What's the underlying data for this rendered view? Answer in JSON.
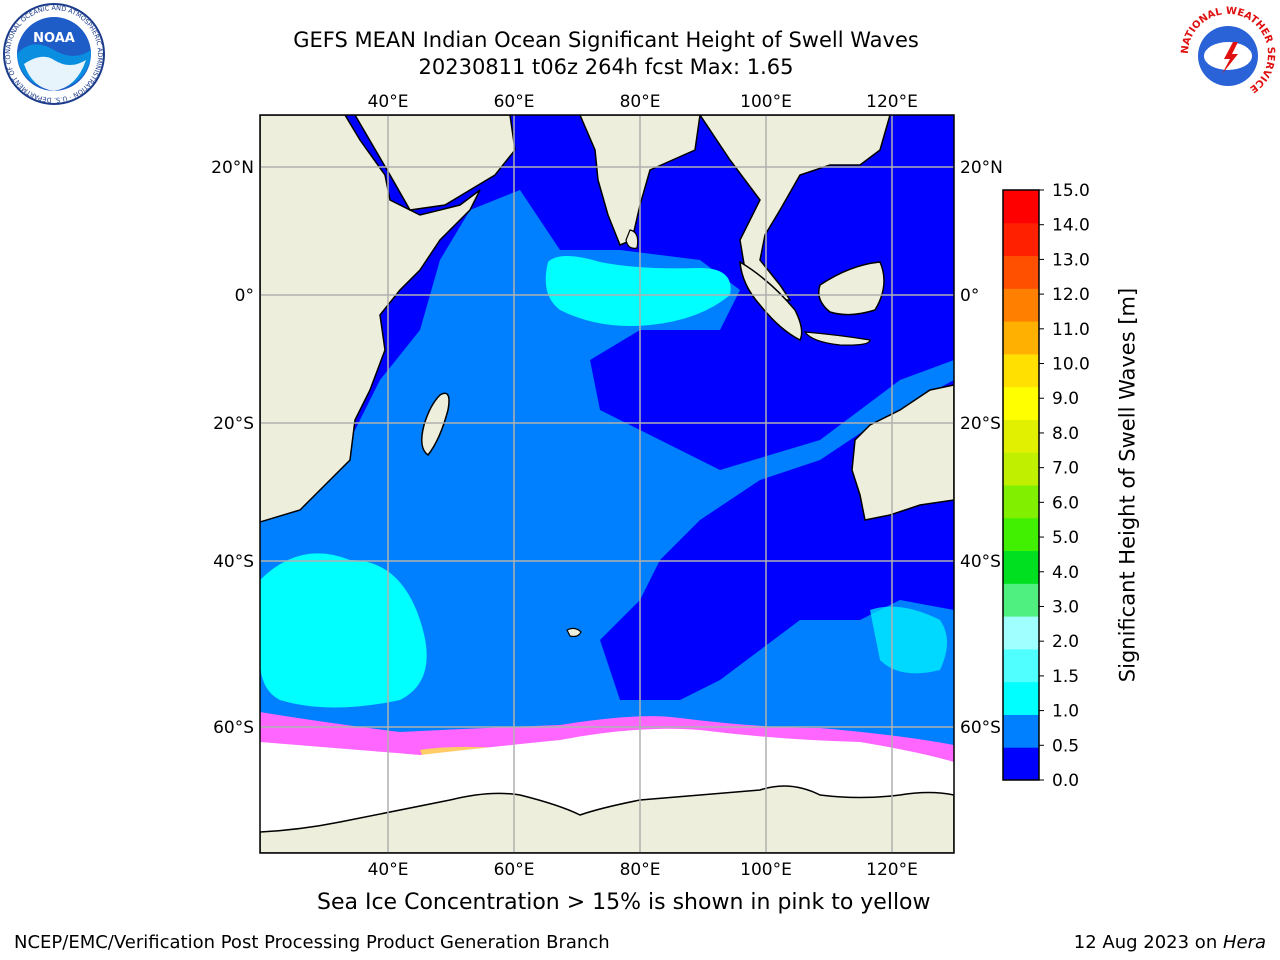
{
  "header": {
    "title_line1": "GEFS MEAN Indian Ocean Significant Height of Swell Waves",
    "title_line2": "20230811 t06z 264h fcst   Max: 1.65"
  },
  "logos": {
    "left": "noaa-logo",
    "left_text": "NOAA",
    "left_ring_text": "NATIONAL OCEANIC AND ATMOSPHERIC ADMINISTRATION · U.S. DEPARTMENT OF COMMERCE",
    "right": "nws-logo",
    "right_ring_text": "NATIONAL WEATHER SERVICE"
  },
  "map": {
    "lon_ticks": [
      "40°E",
      "60°E",
      "80°E",
      "100°E",
      "120°E"
    ],
    "lat_ticks_left": [
      "20°N",
      "0°",
      "20°S",
      "40°S",
      "60°S"
    ],
    "lat_ticks_right": [
      "20°N",
      "0°",
      "20°S",
      "40°S",
      "60°S"
    ],
    "grid": true,
    "colors": {
      "land": "#eeeedc",
      "ice": "#ffffff",
      "level_0": "#0000ff",
      "level_1": "#0080ff",
      "level_2": "#00ffff",
      "sea_ice_edge": "#ff66ff",
      "sea_ice_high": "#ffcc66"
    }
  },
  "colorbar": {
    "title": "Significant Height of Swell Waves [m]",
    "labels": [
      "0.0",
      "0.5",
      "1.0",
      "1.5",
      "2.0",
      "3.0",
      "4.0",
      "5.0",
      "6.0",
      "7.0",
      "8.0",
      "9.0",
      "10.0",
      "11.0",
      "12.0",
      "13.0",
      "14.0",
      "15.0"
    ],
    "colors": [
      "#0000ff",
      "#0080ff",
      "#00ffff",
      "#50ffff",
      "#a0ffff",
      "#50f080",
      "#00e020",
      "#40f000",
      "#80f000",
      "#c0f000",
      "#e0f000",
      "#ffff00",
      "#ffe000",
      "#ffb000",
      "#ff8000",
      "#ff5000",
      "#ff2000",
      "#ff0000"
    ]
  },
  "caption": "Sea Ice Concentration > 15% is shown in pink to yellow",
  "footer": {
    "left": "NCEP/EMC/Verification Post Processing Product Generation Branch",
    "right_date": "12 Aug 2023 on ",
    "right_host": "Hera"
  }
}
